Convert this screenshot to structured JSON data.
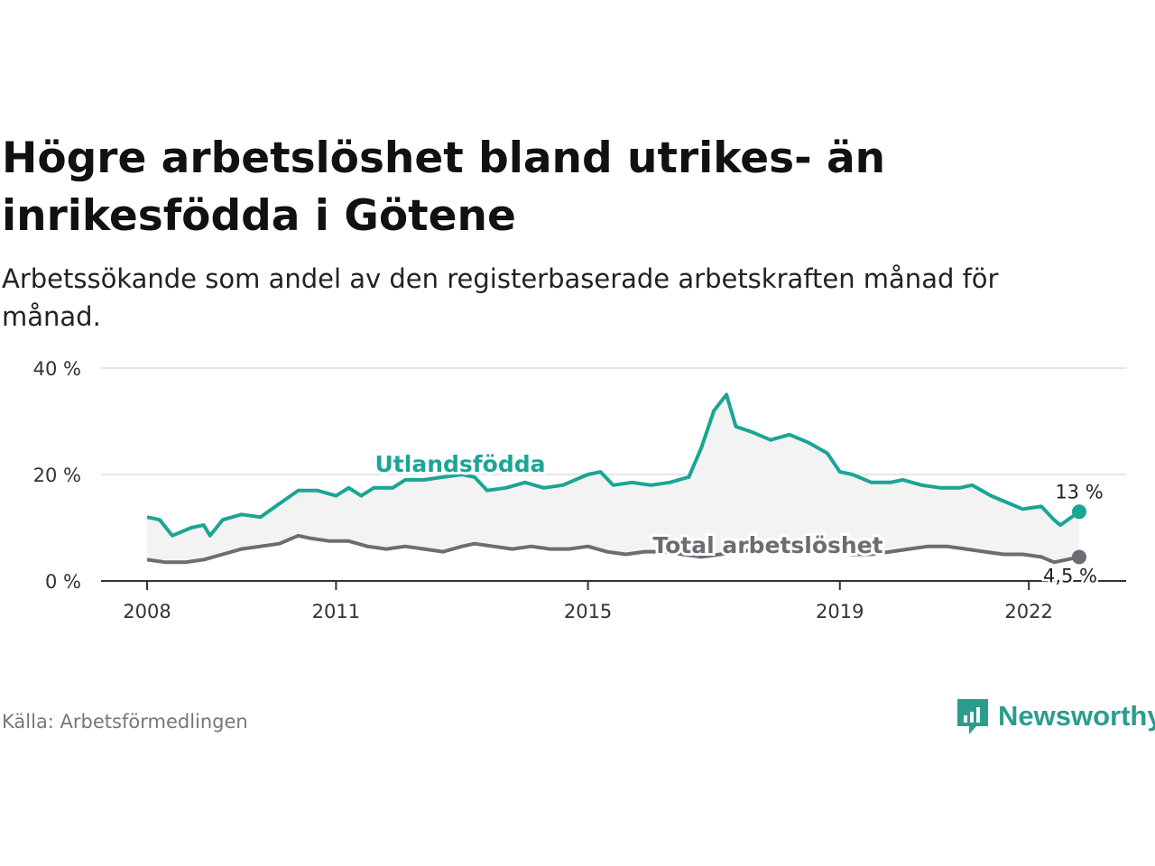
{
  "title": "Högre arbetslöshet bland utrikes- än inrikesfödda i Götene",
  "subtitle": "Arbetssökande som andel av den registerbaserade arbetskraften månad för månad.",
  "source": "Källa: Arbetsförmedlingen",
  "brand": "Newsworthy",
  "colors": {
    "foreign": "#1aa595",
    "total": "#6e6b73",
    "band": "#f3f3f3",
    "grid": "#dddddd",
    "axis": "#333333"
  },
  "chart_data": {
    "type": "line",
    "title": "Högre arbetslöshet bland utrikes- än inrikesfödda i Götene",
    "ylim": [
      0,
      40
    ],
    "yticks": [
      0,
      20,
      40
    ],
    "ytick_labels": [
      "0 %",
      "20 %",
      "40 %"
    ],
    "xlim": [
      2008.0,
      2022.8
    ],
    "xticks": [
      2008,
      2011,
      2015,
      2019,
      2022
    ],
    "xtick_labels": [
      "2008",
      "2011",
      "2015",
      "2019",
      "2022"
    ],
    "series": [
      {
        "name": "Utlandsfödda",
        "label": "Utlandsfödda",
        "end_label": "13 %",
        "points": [
          [
            2008.0,
            12
          ],
          [
            2008.2,
            11.5
          ],
          [
            2008.4,
            8.5
          ],
          [
            2008.7,
            10
          ],
          [
            2008.9,
            10.5
          ],
          [
            2009.0,
            8.5
          ],
          [
            2009.2,
            11.5
          ],
          [
            2009.5,
            12.5
          ],
          [
            2009.8,
            12
          ],
          [
            2010.1,
            14.5
          ],
          [
            2010.4,
            17
          ],
          [
            2010.7,
            17
          ],
          [
            2011.0,
            16
          ],
          [
            2011.2,
            17.5
          ],
          [
            2011.4,
            16
          ],
          [
            2011.6,
            17.5
          ],
          [
            2011.9,
            17.5
          ],
          [
            2012.1,
            19
          ],
          [
            2012.4,
            19
          ],
          [
            2012.7,
            19.5
          ],
          [
            2013.0,
            20
          ],
          [
            2013.2,
            19.5
          ],
          [
            2013.4,
            17
          ],
          [
            2013.7,
            17.5
          ],
          [
            2014.0,
            18.5
          ],
          [
            2014.3,
            17.5
          ],
          [
            2014.6,
            18
          ],
          [
            2014.9,
            19.5
          ],
          [
            2015.0,
            20
          ],
          [
            2015.2,
            20.5
          ],
          [
            2015.4,
            18
          ],
          [
            2015.7,
            18.5
          ],
          [
            2016.0,
            18
          ],
          [
            2016.3,
            18.5
          ],
          [
            2016.6,
            19.5
          ],
          [
            2016.8,
            25
          ],
          [
            2017.0,
            32
          ],
          [
            2017.2,
            35
          ],
          [
            2017.35,
            29
          ],
          [
            2017.6,
            28
          ],
          [
            2017.9,
            26.5
          ],
          [
            2018.2,
            27.5
          ],
          [
            2018.5,
            26
          ],
          [
            2018.8,
            24
          ],
          [
            2019.0,
            20.5
          ],
          [
            2019.2,
            20
          ],
          [
            2019.5,
            18.5
          ],
          [
            2019.8,
            18.5
          ],
          [
            2020.0,
            19
          ],
          [
            2020.3,
            18
          ],
          [
            2020.6,
            17.5
          ],
          [
            2020.9,
            17.5
          ],
          [
            2021.1,
            18
          ],
          [
            2021.4,
            16
          ],
          [
            2021.7,
            14.5
          ],
          [
            2021.9,
            13.5
          ],
          [
            2022.2,
            14
          ],
          [
            2022.4,
            11.5
          ],
          [
            2022.5,
            10.5
          ],
          [
            2022.8,
            13
          ]
        ]
      },
      {
        "name": "Total arbetslöshet",
        "label": "Total arbetslöshet",
        "end_label": "4,5 %",
        "points": [
          [
            2008.0,
            4
          ],
          [
            2008.3,
            3.5
          ],
          [
            2008.6,
            3.5
          ],
          [
            2008.9,
            4
          ],
          [
            2009.2,
            5
          ],
          [
            2009.5,
            6
          ],
          [
            2009.8,
            6.5
          ],
          [
            2010.1,
            7
          ],
          [
            2010.4,
            8.5
          ],
          [
            2010.6,
            8
          ],
          [
            2010.9,
            7.5
          ],
          [
            2011.2,
            7.5
          ],
          [
            2011.5,
            6.5
          ],
          [
            2011.8,
            6
          ],
          [
            2012.1,
            6.5
          ],
          [
            2012.4,
            6
          ],
          [
            2012.7,
            5.5
          ],
          [
            2013.0,
            6.5
          ],
          [
            2013.2,
            7
          ],
          [
            2013.5,
            6.5
          ],
          [
            2013.8,
            6
          ],
          [
            2014.1,
            6.5
          ],
          [
            2014.4,
            6
          ],
          [
            2014.7,
            6
          ],
          [
            2015.0,
            6.5
          ],
          [
            2015.3,
            5.5
          ],
          [
            2015.6,
            5
          ],
          [
            2015.9,
            5.5
          ],
          [
            2016.2,
            5.5
          ],
          [
            2016.5,
            5
          ],
          [
            2016.8,
            4.5
          ],
          [
            2017.1,
            5
          ],
          [
            2017.4,
            5.5
          ],
          [
            2017.7,
            6
          ],
          [
            2018.0,
            6
          ],
          [
            2018.3,
            6
          ],
          [
            2018.6,
            6
          ],
          [
            2018.9,
            5.5
          ],
          [
            2019.2,
            5
          ],
          [
            2019.5,
            5
          ],
          [
            2019.8,
            5.5
          ],
          [
            2020.1,
            6
          ],
          [
            2020.4,
            6.5
          ],
          [
            2020.7,
            6.5
          ],
          [
            2021.0,
            6
          ],
          [
            2021.3,
            5.5
          ],
          [
            2021.6,
            5
          ],
          [
            2021.9,
            5
          ],
          [
            2022.2,
            4.5
          ],
          [
            2022.4,
            3.5
          ],
          [
            2022.6,
            4
          ],
          [
            2022.8,
            4.5
          ]
        ]
      }
    ]
  }
}
